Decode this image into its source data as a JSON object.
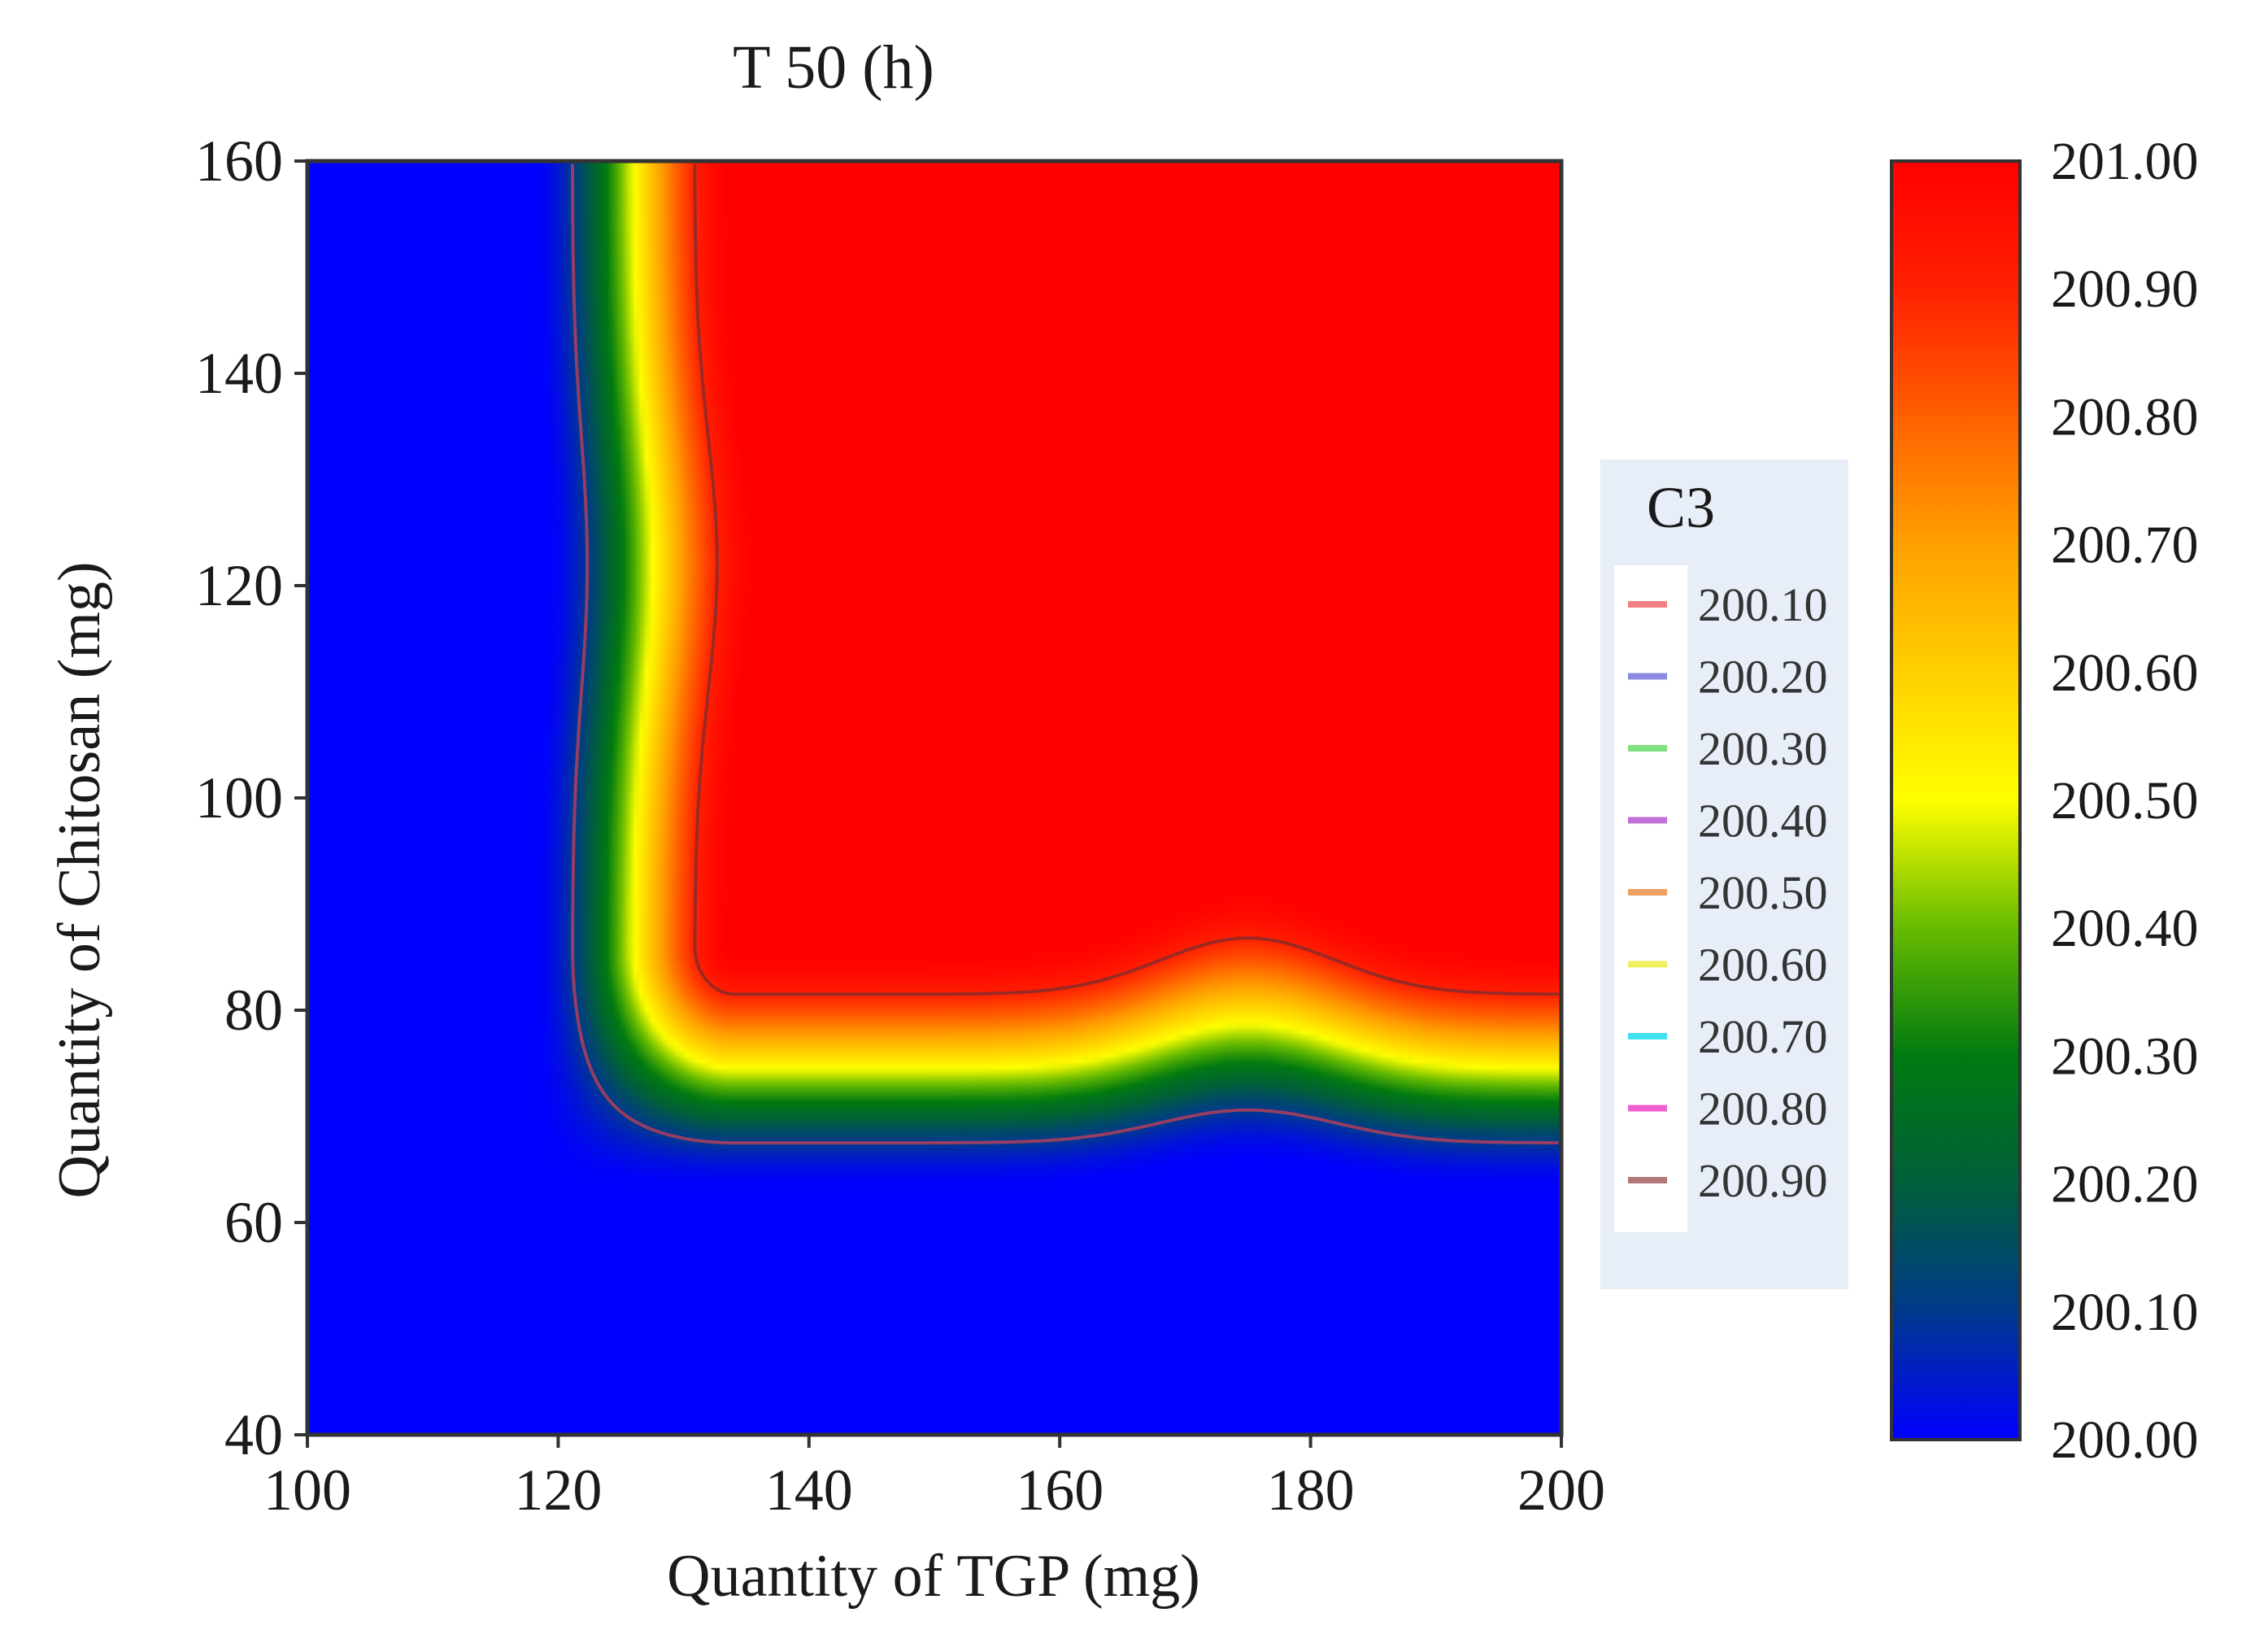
{
  "chart_data": {
    "type": "heatmap",
    "subtype": "contour",
    "title": "T 50 (h)",
    "xlabel": "Quantity of TGP (mg)",
    "ylabel": "Quantity of Chitosan (mg)",
    "xlim": [
      100,
      200
    ],
    "ylim": [
      40,
      160
    ],
    "xticks": [
      "100",
      "120",
      "140",
      "160",
      "180",
      "200"
    ],
    "yticks": [
      "40",
      "60",
      "80",
      "100",
      "120",
      "140",
      "160"
    ],
    "grid": false,
    "colorbar": {
      "min": 200.0,
      "max": 201.0,
      "ticks": [
        "200.00",
        "200.10",
        "200.20",
        "200.30",
        "200.40",
        "200.50",
        "200.60",
        "200.70",
        "200.80",
        "200.90",
        "201.00"
      ],
      "colors": [
        "#0000ff",
        "#003a8c",
        "#005f3a",
        "#007a10",
        "#66bb00",
        "#ffff00",
        "#ffd000",
        "#ffa000",
        "#ff6000",
        "#ff2000",
        "#ff0000"
      ]
    },
    "legend": {
      "title": "C3",
      "placement": "right",
      "entries": [
        {
          "label": "200.10",
          "color": "#f08080"
        },
        {
          "label": "200.20",
          "color": "#8a8ae0"
        },
        {
          "label": "200.30",
          "color": "#7fe07f"
        },
        {
          "label": "200.40",
          "color": "#c070d8"
        },
        {
          "label": "200.50",
          "color": "#f0a060"
        },
        {
          "label": "200.60",
          "color": "#f0f060"
        },
        {
          "label": "200.70",
          "color": "#40e0f0"
        },
        {
          "label": "200.80",
          "color": "#f060d0"
        },
        {
          "label": "200.90",
          "color": "#b07878"
        }
      ]
    },
    "response_model": {
      "description": "approximate T50 surface over (TGP, Chitosan); low (~200.0) when TGP < ~118 or Chitosan < ~65, plateau (~201.0) when TGP > ~135 and Chitosan > ~85, local bump near TGP 175",
      "tgp_transition": [
        118,
        134
      ],
      "chitosan_transition": [
        64,
        86
      ],
      "bump_center_tgp": 175,
      "bump_shift_chitosan": 6
    }
  }
}
